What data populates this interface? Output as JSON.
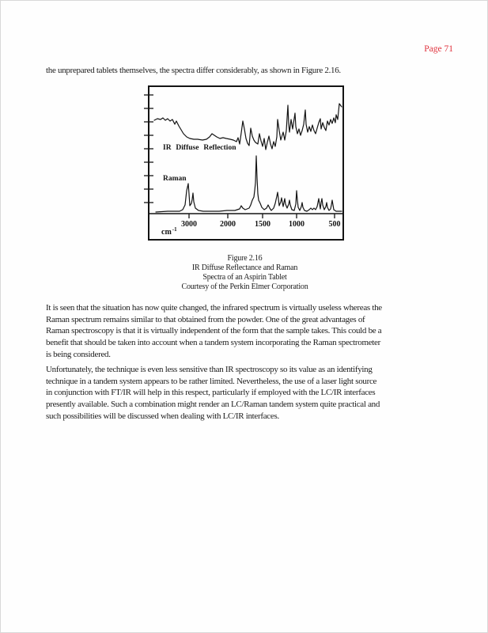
{
  "page": {
    "label": "Page 71",
    "label_color": "#e0333e"
  },
  "intro": "the unprepared tablets themselves, the spectra differ considerably, as shown in Figure 2.16.",
  "figure": {
    "ir_label": "IR Diffuse Reflection",
    "raman_label": "Raman",
    "axis_unit_base": "cm",
    "axis_unit_sup": "-1",
    "caption_line1": "Figure 2.16",
    "caption_line2": "IR Diffuse Reflectance and Raman",
    "caption_line3": "Spectra of an Aspirin Tablet",
    "caption_line4": "Courtesy of the Perkin Elmer Corporation"
  },
  "paragraph1": "It is seen that the situation has now quite changed, the infrared spectrum is virtually useless whereas the\nRaman spectrum remains similar to that obtained from  the powder. One of the great advantages of\nRaman spectroscopy is that it is virtually independent of the form that the sample takes. This could be a\nbenefit that should be taken into account when a tandem system incorporating the Raman spectrometer\nis being considered.",
  "paragraph2": "Unfortunately, the technique is even less sensitive than IR spectroscopy so its value as an identifying\ntechnique in a tandem system appears to be rather limited. Nevertheless, the use of a laser light source\nin conjunction with FT/IR will help in this respect, particularly if employed with the LC/IR interfaces\npresently available. Such a combination might render an LC/Raman tandem system quite practical and\nsuch possibilities will be discussed when dealing with LC/IR interfaces.",
  "chart_data": {
    "type": "line",
    "title": "IR Diffuse Reflectance and Raman Spectra of an Aspirin Tablet",
    "xlabel": "cm-1",
    "x_tick_labels": [
      "3000",
      "2000",
      "1500",
      "1000",
      "500"
    ],
    "x_axis_note": "split wavenumber scale decreasing left to right (3000-2000 compressed vs 2000-500)",
    "legend_position": "labels inside plot",
    "grid": false,
    "series": [
      {
        "name": "IR Diffuse Reflection",
        "description": "broad noisy reflectance trace, flat near 3000 then increasingly jagged below ~1800 cm-1 with tall spikes near 1600 and below 1000"
      },
      {
        "name": "Raman",
        "description": "sharp-line spectrum on flat baseline",
        "approx_peak_positions_cm": [
          3080,
          2940,
          1610,
          1440,
          1290,
          1190,
          1050,
          800,
          750,
          650,
          550
        ]
      }
    ],
    "traces": {
      "ir": [
        [
          18,
          47
        ],
        [
          22,
          45
        ],
        [
          26,
          46
        ],
        [
          29,
          44
        ],
        [
          32,
          47
        ],
        [
          35,
          45
        ],
        [
          38,
          48
        ],
        [
          41,
          46
        ],
        [
          44,
          52
        ],
        [
          46,
          48
        ],
        [
          49,
          54
        ],
        [
          52,
          59
        ],
        [
          55,
          64
        ],
        [
          59,
          68
        ],
        [
          63,
          70
        ],
        [
          68,
          71
        ],
        [
          73,
          71
        ],
        [
          79,
          72
        ],
        [
          84,
          71
        ],
        [
          88,
          68
        ],
        [
          91,
          64
        ],
        [
          94,
          66
        ],
        [
          97,
          68
        ],
        [
          101,
          70
        ],
        [
          105,
          69
        ],
        [
          109,
          70
        ],
        [
          114,
          71
        ],
        [
          118,
          72
        ],
        [
          122,
          74
        ],
        [
          124,
          69
        ],
        [
          126,
          77
        ],
        [
          128,
          63
        ],
        [
          130,
          48
        ],
        [
          132,
          58
        ],
        [
          134,
          70
        ],
        [
          136,
          76
        ],
        [
          138,
          79
        ],
        [
          140,
          57
        ],
        [
          142,
          67
        ],
        [
          144,
          72
        ],
        [
          146,
          75
        ],
        [
          149,
          77
        ],
        [
          151,
          64
        ],
        [
          153,
          73
        ],
        [
          155,
          80
        ],
        [
          157,
          70
        ],
        [
          159,
          84
        ],
        [
          161,
          75
        ],
        [
          163,
          67
        ],
        [
          165,
          77
        ],
        [
          167,
          83
        ],
        [
          169,
          74
        ],
        [
          171,
          80
        ],
        [
          173,
          68
        ],
        [
          174,
          46
        ],
        [
          176,
          60
        ],
        [
          178,
          72
        ],
        [
          181,
          62
        ],
        [
          183,
          72
        ],
        [
          185,
          60
        ],
        [
          187,
          28
        ],
        [
          188,
          52
        ],
        [
          189,
          62
        ],
        [
          191,
          46
        ],
        [
          193,
          58
        ],
        [
          196,
          38
        ],
        [
          197,
          55
        ],
        [
          199,
          64
        ],
        [
          201,
          58
        ],
        [
          203,
          66
        ],
        [
          205,
          60
        ],
        [
          207,
          52
        ],
        [
          209,
          34
        ],
        [
          210,
          52
        ],
        [
          212,
          62
        ],
        [
          214,
          55
        ],
        [
          216,
          61
        ],
        [
          218,
          53
        ],
        [
          220,
          60
        ],
        [
          222,
          64
        ],
        [
          224,
          57
        ],
        [
          226,
          50
        ],
        [
          228,
          45
        ],
        [
          229,
          58
        ],
        [
          231,
          50
        ],
        [
          233,
          56
        ],
        [
          235,
          60
        ],
        [
          237,
          48
        ],
        [
          239,
          53
        ],
        [
          241,
          46
        ],
        [
          243,
          51
        ],
        [
          245,
          44
        ],
        [
          247,
          50
        ],
        [
          248,
          40
        ],
        [
          250,
          46
        ],
        [
          252,
          26
        ],
        [
          255,
          30
        ]
      ],
      "raman": [
        [
          20,
          163
        ],
        [
          35,
          162
        ],
        [
          50,
          162
        ],
        [
          54,
          160
        ],
        [
          57,
          154
        ],
        [
          59,
          136
        ],
        [
          61,
          127
        ],
        [
          62,
          140
        ],
        [
          63,
          155
        ],
        [
          65,
          152
        ],
        [
          66,
          147
        ],
        [
          67,
          139
        ],
        [
          68,
          150
        ],
        [
          70,
          158
        ],
        [
          74,
          161
        ],
        [
          80,
          162
        ],
        [
          90,
          162
        ],
        [
          100,
          162
        ],
        [
          110,
          161
        ],
        [
          120,
          161
        ],
        [
          126,
          159
        ],
        [
          128,
          155
        ],
        [
          130,
          158
        ],
        [
          133,
          160
        ],
        [
          138,
          158
        ],
        [
          140,
          154
        ],
        [
          142,
          148
        ],
        [
          144,
          144
        ],
        [
          145,
          136
        ],
        [
          146,
          126
        ],
        [
          147,
          92
        ],
        [
          148,
          120
        ],
        [
          149,
          140
        ],
        [
          150,
          148
        ],
        [
          152,
          152
        ],
        [
          154,
          157
        ],
        [
          157,
          160
        ],
        [
          160,
          158
        ],
        [
          162,
          154
        ],
        [
          164,
          158
        ],
        [
          166,
          161
        ],
        [
          169,
          158
        ],
        [
          171,
          152
        ],
        [
          173,
          143
        ],
        [
          174,
          138
        ],
        [
          175,
          146
        ],
        [
          176,
          155
        ],
        [
          178,
          150
        ],
        [
          179,
          145
        ],
        [
          180,
          151
        ],
        [
          181,
          156
        ],
        [
          182,
          151
        ],
        [
          183,
          146
        ],
        [
          184,
          153
        ],
        [
          186,
          158
        ],
        [
          188,
          153
        ],
        [
          189,
          148
        ],
        [
          190,
          154
        ],
        [
          192,
          160
        ],
        [
          195,
          161
        ],
        [
          197,
          153
        ],
        [
          198,
          136
        ],
        [
          199,
          148
        ],
        [
          200,
          157
        ],
        [
          202,
          161
        ],
        [
          204,
          156
        ],
        [
          205,
          151
        ],
        [
          206,
          157
        ],
        [
          208,
          161
        ],
        [
          211,
          162
        ],
        [
          214,
          160
        ],
        [
          216,
          158
        ],
        [
          218,
          160
        ],
        [
          220,
          158
        ],
        [
          222,
          160
        ],
        [
          224,
          156
        ],
        [
          225,
          151
        ],
        [
          226,
          146
        ],
        [
          227,
          153
        ],
        [
          228,
          159
        ],
        [
          229,
          151
        ],
        [
          230,
          146
        ],
        [
          231,
          154
        ],
        [
          233,
          160
        ],
        [
          235,
          156
        ],
        [
          236,
          151
        ],
        [
          237,
          157
        ],
        [
          239,
          161
        ],
        [
          241,
          159
        ],
        [
          242,
          154
        ],
        [
          243,
          148
        ],
        [
          244,
          154
        ],
        [
          245,
          160
        ],
        [
          248,
          162
        ],
        [
          252,
          162
        ],
        [
          255,
          162
        ]
      ]
    }
  }
}
